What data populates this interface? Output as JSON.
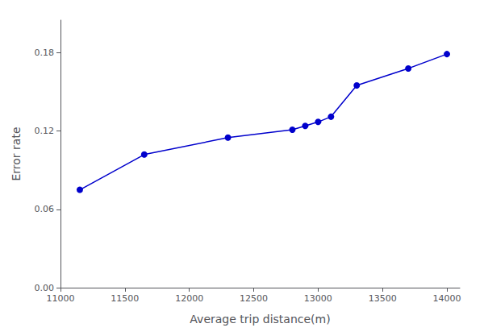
{
  "chart_data": {
    "type": "line",
    "x": [
      11150,
      11650,
      12300,
      12800,
      12900,
      13000,
      13100,
      13300,
      13700,
      14000
    ],
    "values": [
      0.075,
      0.102,
      0.115,
      0.121,
      0.124,
      0.127,
      0.131,
      0.155,
      0.168,
      0.179
    ],
    "color": "#0000cc",
    "marker": "circle",
    "xlabel": "Average trip distance(m)",
    "ylabel": "Error rate",
    "xlim": [
      11000,
      14100
    ],
    "ylim": [
      0.0,
      0.205
    ],
    "xticks": [
      11000,
      11500,
      12000,
      12500,
      13000,
      13500,
      14000
    ],
    "yticks": [
      {
        "value": 0,
        "label": "0.00"
      },
      0.06,
      0.12,
      0.18
    ],
    "grid": false
  }
}
